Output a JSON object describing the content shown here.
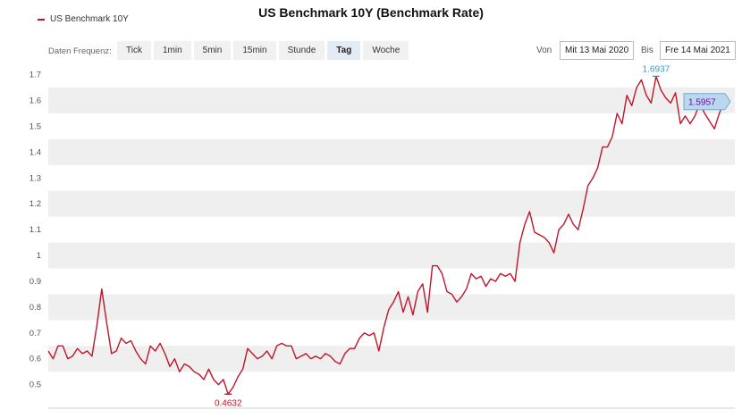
{
  "chart_data": {
    "type": "line",
    "title": "US Benchmark 10Y (Benchmark Rate)",
    "legend": "top-left",
    "series": [
      {
        "name": "US Benchmark 10Y",
        "color": "#c0152a",
        "values": [
          0.63,
          0.6,
          0.65,
          0.65,
          0.6,
          0.61,
          0.64,
          0.62,
          0.63,
          0.61,
          0.73,
          0.87,
          0.74,
          0.62,
          0.63,
          0.68,
          0.66,
          0.67,
          0.63,
          0.6,
          0.58,
          0.65,
          0.63,
          0.66,
          0.62,
          0.57,
          0.6,
          0.55,
          0.58,
          0.57,
          0.55,
          0.54,
          0.52,
          0.56,
          0.52,
          0.5,
          0.52,
          0.4632,
          0.49,
          0.53,
          0.56,
          0.64,
          0.62,
          0.6,
          0.61,
          0.63,
          0.6,
          0.65,
          0.66,
          0.65,
          0.65,
          0.6,
          0.61,
          0.62,
          0.6,
          0.61,
          0.6,
          0.62,
          0.61,
          0.59,
          0.58,
          0.62,
          0.64,
          0.64,
          0.68,
          0.7,
          0.69,
          0.7,
          0.63,
          0.72,
          0.79,
          0.82,
          0.86,
          0.78,
          0.84,
          0.77,
          0.86,
          0.89,
          0.78,
          0.96,
          0.96,
          0.93,
          0.86,
          0.85,
          0.82,
          0.84,
          0.87,
          0.93,
          0.91,
          0.92,
          0.88,
          0.91,
          0.9,
          0.93,
          0.92,
          0.93,
          0.9,
          1.05,
          1.12,
          1.17,
          1.09,
          1.08,
          1.07,
          1.05,
          1.01,
          1.1,
          1.12,
          1.16,
          1.12,
          1.1,
          1.18,
          1.27,
          1.3,
          1.34,
          1.42,
          1.42,
          1.46,
          1.55,
          1.51,
          1.62,
          1.58,
          1.65,
          1.68,
          1.62,
          1.59,
          1.6937,
          1.64,
          1.61,
          1.59,
          1.63,
          1.51,
          1.54,
          1.51,
          1.54,
          1.59,
          1.55,
          1.52,
          1.49,
          1.55,
          1.5957
        ]
      }
    ],
    "ylim": [
      0.44,
      1.74
    ],
    "yticks": [
      "0.5",
      "0.6",
      "0.7",
      "0.8",
      "0.9",
      "1",
      "1.1",
      "1.2",
      "1.3",
      "1.4",
      "1.5",
      "1.6",
      "1.7"
    ],
    "grid": true,
    "annotations": {
      "min_label": "0.4632",
      "max_label": "1.6937",
      "last_label": "1.5957",
      "min_color": "#c0152a",
      "max_color": "#2b9fd8",
      "last_color": "#6a0dad"
    }
  },
  "controls": {
    "frequency_label": "Daten Frequenz:",
    "frequencies": [
      "Tick",
      "1min",
      "5min",
      "15min",
      "Stunde",
      "Tag",
      "Woche"
    ],
    "active_frequency": "Tag",
    "from_label": "Von",
    "from_value": "Mit 13 Mai 2020",
    "to_label": "Bis",
    "to_value": "Fre 14 Mai 2021"
  }
}
